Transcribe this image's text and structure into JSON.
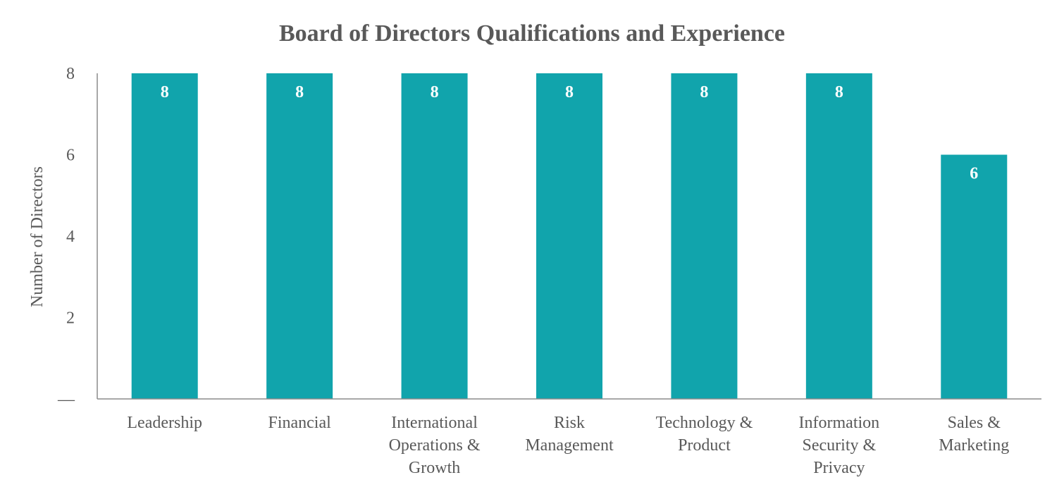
{
  "chart_data": {
    "type": "bar",
    "title": "Board of Directors Qualifications and Experience",
    "xlabel": "",
    "ylabel": "Number of Directors",
    "categories": [
      [
        "Leadership"
      ],
      [
        "Financial"
      ],
      [
        "International",
        "Operations &",
        "Growth"
      ],
      [
        "Risk",
        "Management"
      ],
      [
        "Technology &",
        "Product"
      ],
      [
        "Information",
        "Security &",
        "Privacy"
      ],
      [
        "Sales &",
        "Marketing"
      ]
    ],
    "values": [
      8,
      8,
      8,
      8,
      8,
      8,
      6
    ],
    "ylim": [
      0,
      8
    ],
    "yticks": [
      {
        "value": 0,
        "label": "—"
      },
      {
        "value": 2,
        "label": "2"
      },
      {
        "value": 4,
        "label": "4"
      },
      {
        "value": 6,
        "label": "6"
      },
      {
        "value": 8,
        "label": "8"
      }
    ],
    "data_labels": [
      "8",
      "8",
      "8",
      "8",
      "8",
      "8",
      "6"
    ],
    "grid": false,
    "legend": "none",
    "colors": {
      "bar": "#11A4AC",
      "text": "#595959",
      "axis": "#8C8C8C",
      "data_label": "#FFFFFF"
    }
  }
}
